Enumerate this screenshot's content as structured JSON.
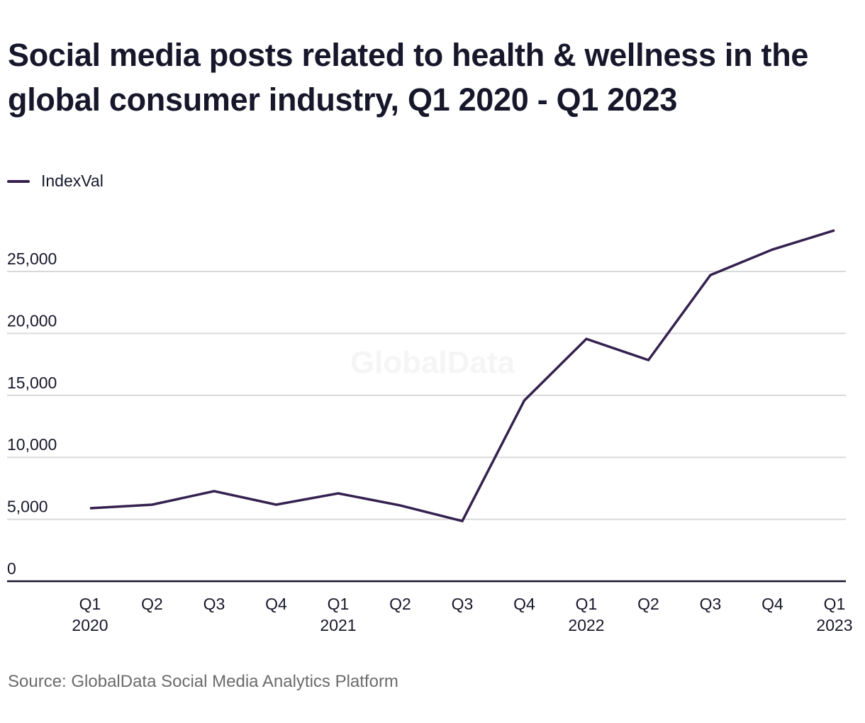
{
  "title": "Social media posts related to health & wellness in the global consumer industry, Q1 2020 - Q1 2023",
  "legend": {
    "label": "IndexVal",
    "icon": "line-swatch-icon"
  },
  "watermark": "GlobalData",
  "source": "Source: GlobalData Social Media Analytics Platform",
  "colors": {
    "line": "#35214f",
    "grid": "#d9d9d9",
    "axis": "#17172b",
    "text": "#17172b",
    "source": "#6b6b6b"
  },
  "chart_data": {
    "type": "line",
    "title": "Social media posts related to health & wellness in the global consumer industry, Q1 2020 - Q1 2023",
    "xlabel": "",
    "ylabel": "",
    "categories": [
      {
        "quarter": "Q1",
        "year": "2020"
      },
      {
        "quarter": "Q2",
        "year": ""
      },
      {
        "quarter": "Q3",
        "year": ""
      },
      {
        "quarter": "Q4",
        "year": ""
      },
      {
        "quarter": "Q1",
        "year": "2021"
      },
      {
        "quarter": "Q2",
        "year": ""
      },
      {
        "quarter": "Q3",
        "year": ""
      },
      {
        "quarter": "Q4",
        "year": ""
      },
      {
        "quarter": "Q1",
        "year": "2022"
      },
      {
        "quarter": "Q2",
        "year": ""
      },
      {
        "quarter": "Q3",
        "year": ""
      },
      {
        "quarter": "Q4",
        "year": ""
      },
      {
        "quarter": "Q1",
        "year": "2023"
      }
    ],
    "series": [
      {
        "name": "IndexVal",
        "values": [
          5890,
          6180,
          7270,
          6180,
          7090,
          6120,
          4860,
          14590,
          19560,
          17850,
          24710,
          26770,
          28320
        ]
      }
    ],
    "ylim": [
      0,
      30000
    ],
    "yticks": [
      0,
      5000,
      10000,
      15000,
      20000,
      25000
    ],
    "ytick_labels": [
      "0",
      "5,000",
      "10,000",
      "15,000",
      "20,000",
      "25,000"
    ],
    "grid": true,
    "legend_position": "top-left"
  }
}
